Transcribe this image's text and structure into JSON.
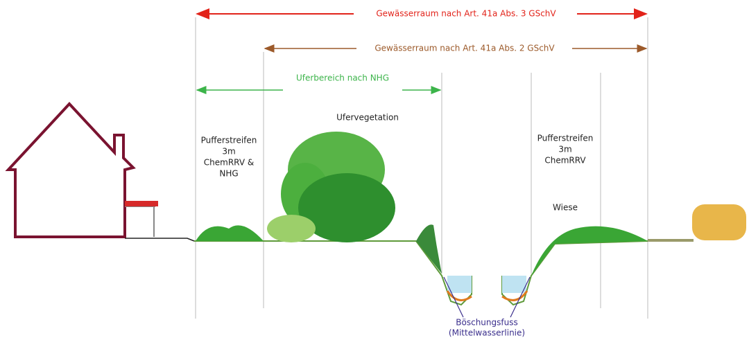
{
  "arrows": [
    {
      "label": "Gewässerraum nach Art. 41a Abs. 3 GSchV"
    },
    {
      "label": "Gewässerraum nach Art. 41a Abs. 2 GSchV"
    },
    {
      "label": "Uferbereich nach NHG"
    }
  ],
  "labels": [
    {
      "lines": [
        "Pufferstreifen",
        "3m",
        "ChemRRV &",
        "NHG"
      ]
    },
    {
      "lines": [
        "Ufervegetation"
      ]
    },
    {
      "lines": [
        "Pufferstreifen",
        "3m",
        "ChemRRV"
      ]
    },
    {
      "lines": [
        "Wiese"
      ]
    },
    {
      "lines": [
        "Böschungsfuss",
        "(Mittelwasserlinie)"
      ]
    }
  ]
}
